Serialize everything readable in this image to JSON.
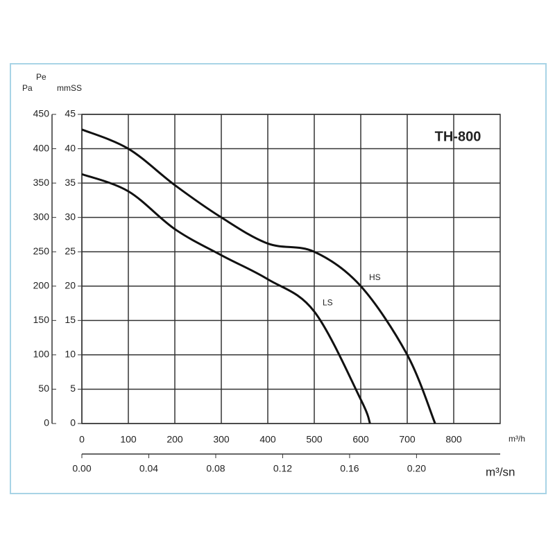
{
  "chart_data": {
    "type": "line",
    "title": "TH-800",
    "y_label": "Pa",
    "y_label_top": "Pe",
    "y2_label": "mmSS",
    "x_label": "m³/h",
    "x2_label": "m³/sn",
    "xlim": [
      0,
      900
    ],
    "xticks": [
      0,
      100,
      200,
      300,
      400,
      500,
      600,
      700,
      800
    ],
    "x2lim": [
      0,
      0.25
    ],
    "x2ticks": [
      {
        "value": 0,
        "label": "0.00"
      },
      0.04,
      {
        "value": 0.08,
        "label": "0.08"
      },
      0.12,
      0.16,
      {
        "value": 0.2,
        "label": "0.20"
      }
    ],
    "ylim": [
      0,
      450
    ],
    "yticks": [
      0,
      50,
      100,
      150,
      200,
      250,
      300,
      350,
      400,
      450
    ],
    "y2lim": [
      0,
      45
    ],
    "y2ticks": [
      0,
      5,
      10,
      15,
      20,
      25,
      30,
      35,
      40,
      45
    ],
    "grid": true,
    "series": [
      {
        "name": "HS",
        "color": "#111111",
        "x": [
          0,
          100,
          200,
          300,
          400,
          500,
          600,
          700,
          760
        ],
        "values": [
          428,
          400,
          347,
          300,
          262,
          250,
          200,
          100,
          0
        ]
      },
      {
        "name": "LS",
        "color": "#111111",
        "x": [
          0,
          100,
          200,
          300,
          400,
          500,
          600,
          620
        ],
        "values": [
          363,
          338,
          283,
          245,
          210,
          163,
          35,
          0
        ]
      }
    ]
  }
}
